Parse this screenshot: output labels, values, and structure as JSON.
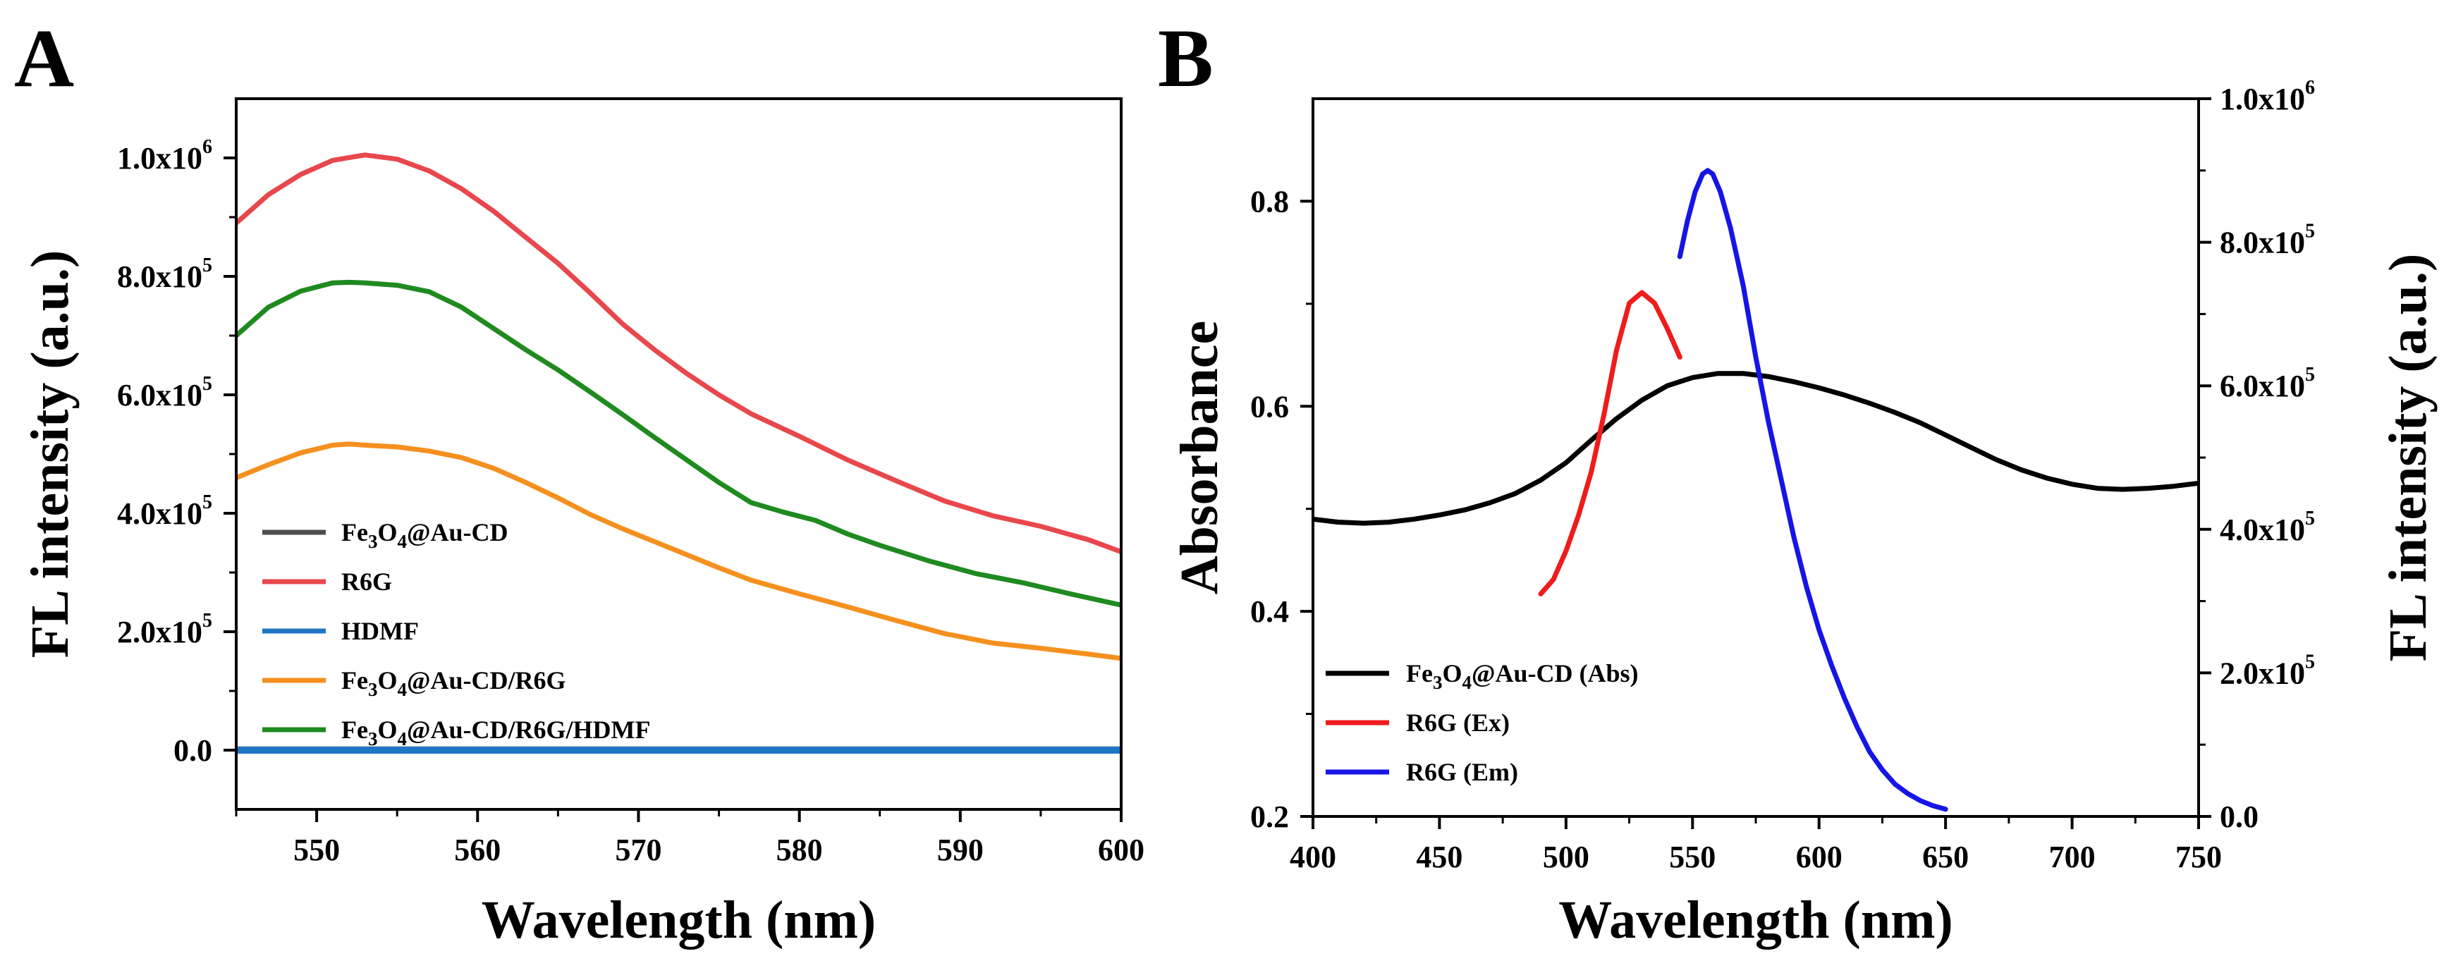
{
  "chart_data": [
    {
      "panel": "A",
      "type": "line",
      "xlabel": "Wavelength (nm)",
      "ylabel": "FL intensity (a.u.)",
      "xlim": [
        545,
        600
      ],
      "ylim": [
        -100000,
        1100000
      ],
      "xticks": [
        550,
        560,
        570,
        580,
        590,
        600
      ],
      "xtick_labels": [
        "550",
        "560",
        "570",
        "580",
        "590",
        "600"
      ],
      "yticks": [
        0,
        200000,
        400000,
        600000,
        800000,
        1000000
      ],
      "ytick_labels": [
        {
          "base": "0.0",
          "exp": ""
        },
        {
          "base": "2.0x10",
          "exp": "5"
        },
        {
          "base": "4.0x10",
          "exp": "5"
        },
        {
          "base": "6.0x10",
          "exp": "5"
        },
        {
          "base": "8.0x10",
          "exp": "5"
        },
        {
          "base": "1.0x10",
          "exp": "6"
        }
      ],
      "legend": [
        {
          "parts": [
            [
              "Fe",
              ""
            ],
            [
              "3",
              "sub"
            ],
            [
              "O",
              ""
            ],
            [
              "4",
              "sub"
            ],
            [
              "@Au-CD",
              ""
            ]
          ],
          "color": "#4d4d4d"
        },
        {
          "parts": [
            [
              "R6G",
              ""
            ]
          ],
          "color": "#e8474c"
        },
        {
          "parts": [
            [
              "HDMF",
              ""
            ]
          ],
          "color": "#1f77c4"
        },
        {
          "parts": [
            [
              "Fe",
              ""
            ],
            [
              "3",
              "sub"
            ],
            [
              "O",
              ""
            ],
            [
              "4",
              "sub"
            ],
            [
              "@Au-CD/R6G",
              ""
            ]
          ],
          "color": "#f5901f"
        },
        {
          "parts": [
            [
              "Fe",
              ""
            ],
            [
              "3",
              "sub"
            ],
            [
              "O",
              ""
            ],
            [
              "4",
              "sub"
            ],
            [
              "@Au-CD/R6G/HDMF",
              ""
            ]
          ],
          "color": "#1f8a1f"
        }
      ],
      "series": [
        {
          "name": "Fe3O4@Au-CD",
          "color": "#4d4d4d",
          "axis": "left",
          "x": [
            545,
            600
          ],
          "y": [
            2000,
            2000
          ]
        },
        {
          "name": "HDMF",
          "color": "#1f77c4",
          "axis": "left",
          "x": [
            545,
            600
          ],
          "y": [
            0,
            0
          ]
        },
        {
          "name": "R6G",
          "color": "#e8474c",
          "axis": "left",
          "x": [
            545,
            547,
            549,
            551,
            553,
            555,
            557,
            559,
            561,
            563,
            565,
            567,
            569,
            571,
            573,
            575,
            577,
            580,
            583,
            586,
            589,
            592,
            595,
            598,
            600
          ],
          "y": [
            890000,
            938000,
            972000,
            996000,
            1005000,
            998000,
            978000,
            948000,
            910000,
            866000,
            822000,
            772000,
            720000,
            676000,
            636000,
            600000,
            568000,
            530000,
            490000,
            455000,
            421000,
            396000,
            378000,
            355000,
            335000
          ]
        },
        {
          "name": "Fe3O4@Au-CD/R6G",
          "color": "#f5901f",
          "axis": "left",
          "x": [
            545,
            547,
            549,
            551,
            552,
            553,
            555,
            557,
            559,
            561,
            563,
            565,
            567,
            569,
            571,
            573,
            575,
            577,
            580,
            583,
            586,
            589,
            592,
            595,
            598,
            600
          ],
          "y": [
            460000,
            482000,
            502000,
            515000,
            517000,
            515000,
            512000,
            505000,
            494000,
            476000,
            452000,
            426000,
            398000,
            374000,
            352000,
            330000,
            308000,
            287000,
            264000,
            242000,
            219000,
            197000,
            181000,
            172000,
            162000,
            155000
          ]
        },
        {
          "name": "Fe3O4@Au-CD/R6G/HDMF",
          "color": "#1f8a1f",
          "axis": "left",
          "x": [
            545,
            547,
            549,
            551,
            552,
            553,
            555,
            557,
            559,
            561,
            563,
            565,
            567,
            569,
            571,
            573,
            575,
            577,
            579,
            581,
            583,
            585,
            588,
            591,
            594,
            597,
            600
          ],
          "y": [
            700000,
            748000,
            775000,
            789000,
            790000,
            789000,
            785000,
            774000,
            748000,
            712000,
            676000,
            642000,
            605000,
            567000,
            528000,
            490000,
            452000,
            418000,
            402000,
            388000,
            365000,
            346000,
            320000,
            298000,
            282000,
            263000,
            245000
          ]
        }
      ]
    },
    {
      "panel": "B",
      "type": "line",
      "xlabel": "Wavelength (nm)",
      "ylabel": "Absorbance",
      "ylabel_right": "FL intensity (a.u.)",
      "xlim": [
        400,
        750
      ],
      "ylim": [
        0.2,
        0.9
      ],
      "ylim_right": [
        0,
        1000000
      ],
      "xticks": [
        400,
        450,
        500,
        550,
        600,
        650,
        700,
        750
      ],
      "xtick_labels": [
        "400",
        "450",
        "500",
        "550",
        "600",
        "650",
        "700",
        "750"
      ],
      "yticks": [
        0.2,
        0.4,
        0.6,
        0.8
      ],
      "ytick_labels": [
        "0.2",
        "0.4",
        "0.6",
        "0.8"
      ],
      "yticks_right": [
        0,
        200000,
        400000,
        600000,
        800000,
        1000000
      ],
      "ytick_labels_right": [
        {
          "base": "0.0",
          "exp": ""
        },
        {
          "base": "2.0x10",
          "exp": "5"
        },
        {
          "base": "4.0x10",
          "exp": "5"
        },
        {
          "base": "6.0x10",
          "exp": "5"
        },
        {
          "base": "8.0x10",
          "exp": "5"
        },
        {
          "base": "1.0x10",
          "exp": "6"
        }
      ],
      "legend": [
        {
          "parts": [
            [
              "Fe",
              ""
            ],
            [
              "3",
              "sub"
            ],
            [
              "O",
              ""
            ],
            [
              "4",
              "sub"
            ],
            [
              "@Au-CD (Abs)",
              ""
            ]
          ],
          "color": "#000000"
        },
        {
          "parts": [
            [
              "R6G (Ex)",
              ""
            ]
          ],
          "color": "#ee1c1c"
        },
        {
          "parts": [
            [
              "R6G (Em)",
              ""
            ]
          ],
          "color": "#1515e6"
        }
      ],
      "series": [
        {
          "name": "Fe3O4@Au-CD (Abs)",
          "color": "#000000",
          "axis": "left",
          "x": [
            400,
            410,
            420,
            430,
            440,
            450,
            460,
            470,
            480,
            490,
            500,
            510,
            520,
            530,
            540,
            550,
            560,
            570,
            580,
            590,
            600,
            610,
            620,
            630,
            640,
            650,
            660,
            670,
            680,
            690,
            700,
            710,
            720,
            730,
            740,
            750
          ],
          "y": [
            0.49,
            0.487,
            0.486,
            0.487,
            0.49,
            0.494,
            0.499,
            0.506,
            0.515,
            0.528,
            0.545,
            0.567,
            0.588,
            0.606,
            0.62,
            0.628,
            0.632,
            0.632,
            0.629,
            0.624,
            0.618,
            0.611,
            0.603,
            0.594,
            0.584,
            0.572,
            0.56,
            0.548,
            0.538,
            0.53,
            0.524,
            0.52,
            0.519,
            0.52,
            0.522,
            0.525
          ]
        },
        {
          "name": "R6G (Ex)",
          "color": "#ee1c1c",
          "axis": "right",
          "x": [
            490,
            495,
            500,
            505,
            510,
            515,
            520,
            525,
            530,
            535,
            540,
            545
          ],
          "y": [
            310000,
            330000,
            370000,
            420000,
            480000,
            560000,
            650000,
            715000,
            730000,
            715000,
            680000,
            640000
          ]
        },
        {
          "name": "R6G (Em)",
          "color": "#1515e6",
          "axis": "right",
          "x": [
            545,
            548,
            551,
            554,
            556,
            558,
            561,
            565,
            570,
            575,
            580,
            585,
            590,
            595,
            600,
            605,
            610,
            615,
            620,
            625,
            630,
            635,
            640,
            645,
            650
          ],
          "y": [
            780000,
            830000,
            870000,
            895000,
            900000,
            895000,
            870000,
            820000,
            740000,
            640000,
            550000,
            470000,
            390000,
            320000,
            260000,
            210000,
            165000,
            125000,
            90000,
            65000,
            45000,
            32000,
            22000,
            15000,
            10000
          ]
        }
      ]
    }
  ]
}
